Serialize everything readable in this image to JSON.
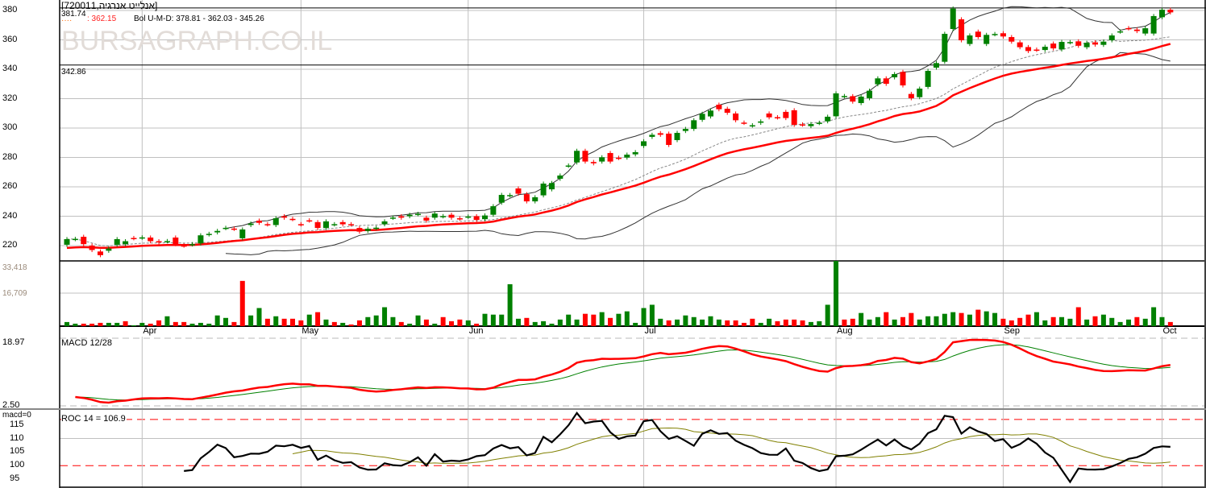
{
  "header": {
    "title": "[אנלייט אנרגיה,720011]",
    "last_price_label": "381.74",
    "ma_value_label": ": 362.15",
    "bollinger_label": "Bol U-M-D: 378.81 - 362.03 - 345.26",
    "low_line_label": "342.86",
    "watermark": "BURSAGRAPH.CO.IL"
  },
  "chart_data": {
    "type": "candlestick",
    "candles": [
      [
        220.6,
        224.4
      ],
      [
        224.4,
        224.6
      ],
      [
        226,
        221
      ],
      [
        220,
        217
      ],
      [
        216,
        213.5
      ],
      [
        216.5,
        218
      ],
      [
        220.6,
        224.4
      ],
      [
        221,
        223
      ],
      [
        225.2,
        225
      ],
      [
        225.4,
        225.6
      ],
      [
        225.5,
        223
      ],
      [
        223,
        222.2
      ],
      [
        222.9,
        223.1
      ],
      [
        225.5,
        221
      ],
      [
        220.1,
        220
      ],
      [
        220.8,
        221
      ],
      [
        221.5,
        227
      ],
      [
        227.6,
        228
      ],
      [
        229,
        230
      ],
      [
        231.9,
        232.1
      ],
      [
        231.6,
        231.4
      ],
      [
        225,
        231
      ],
      [
        234,
        235
      ],
      [
        237,
        235.5
      ],
      [
        234.6,
        234.4
      ],
      [
        234,
        238.6
      ],
      [
        240,
        239
      ],
      [
        238.2,
        238
      ],
      [
        234.6,
        234.4
      ],
      [
        237.2,
        237
      ],
      [
        236,
        232
      ],
      [
        232,
        236.5
      ],
      [
        234.4,
        234.6
      ],
      [
        236,
        234.5
      ],
      [
        234.6,
        234.4
      ],
      [
        232,
        229.5
      ],
      [
        230,
        231.5
      ],
      [
        231.8,
        232.2
      ],
      [
        234.5,
        236.5
      ],
      [
        238.9,
        239.1
      ],
      [
        240,
        239
      ],
      [
        240,
        241
      ],
      [
        241.4,
        241.6
      ],
      [
        239,
        237
      ],
      [
        239,
        241.8
      ],
      [
        239.9,
        240.1
      ],
      [
        241,
        239
      ],
      [
        238.6,
        238.4
      ],
      [
        239.6,
        239.8
      ],
      [
        240,
        237.5
      ],
      [
        238,
        240.5
      ],
      [
        241,
        246.8
      ],
      [
        249.2,
        254.5
      ],
      [
        254.2,
        254.4
      ],
      [
        258.9,
        255.3
      ],
      [
        255,
        250.1
      ],
      [
        250.1,
        252.9
      ],
      [
        254.2,
        262.2
      ],
      [
        258.3,
        262.6
      ],
      [
        265.5,
        267.7
      ],
      [
        274.3,
        274.5
      ],
      [
        276.6,
        284.5
      ],
      [
        284.5,
        277.2
      ],
      [
        276.9,
        276
      ],
      [
        277.2,
        280.1
      ],
      [
        283,
        277.2
      ],
      [
        279.8,
        279.6
      ],
      [
        279.9,
        281.9
      ],
      [
        282.1,
        283.6
      ],
      [
        287.8,
        291
      ],
      [
        294,
        295.4
      ],
      [
        296.5,
        295.4
      ],
      [
        296.2,
        288.5
      ],
      [
        291.8,
        296.7
      ],
      [
        298,
        299.4
      ],
      [
        299.4,
        305.3
      ],
      [
        305.6,
        309.7
      ],
      [
        307.9,
        311.9
      ],
      [
        315.9,
        312.8
      ],
      [
        313.1,
        310.4
      ],
      [
        309.9,
        305.3
      ],
      [
        303.7,
        303.5
      ],
      [
        301.7,
        301.9
      ],
      [
        303.6,
        304.5
      ],
      [
        309.9,
        307.3
      ],
      [
        307.4,
        307.2
      ],
      [
        311,
        306.8
      ],
      [
        312.1,
        302.2
      ],
      [
        302.5,
        302.3
      ],
      [
        301.3,
        302.7
      ],
      [
        303.4,
        303.6
      ],
      [
        304.6,
        307.7
      ],
      [
        308,
        323.6
      ],
      [
        321.6,
        321.8
      ],
      [
        321.7,
        318
      ],
      [
        317,
        321.4
      ],
      [
        320.3,
        325.4
      ],
      [
        329.8,
        333.8
      ],
      [
        333.8,
        330.1
      ],
      [
        334.5,
        336.7
      ],
      [
        338.2,
        329
      ],
      [
        323.2,
        320.3
      ],
      [
        321,
        326.8
      ],
      [
        328,
        338.9
      ],
      [
        341.1,
        344.2
      ],
      [
        345.1,
        364.1
      ],
      [
        367.4,
        381.3
      ],
      [
        374,
        359.7
      ],
      [
        357.2,
        363
      ],
      [
        365.6,
        361.9
      ],
      [
        357.2,
        363.4
      ],
      [
        363.8,
        364
      ],
      [
        364.5,
        362.3
      ],
      [
        361.9,
        358.8
      ],
      [
        358.3,
        355
      ],
      [
        355.1,
        352.4
      ],
      [
        353.4,
        353.2
      ],
      [
        353.1,
        355.3
      ],
      [
        357.5,
        354.2
      ],
      [
        353.5,
        358.6
      ],
      [
        358.3,
        358.5
      ],
      [
        359,
        356
      ],
      [
        355,
        358
      ],
      [
        358.3,
        356.8
      ],
      [
        356.6,
        358.8
      ],
      [
        359.7,
        363
      ],
      [
        365.6,
        365.8
      ],
      [
        368,
        367.8
      ],
      [
        367,
        366
      ],
      [
        364.3,
        367.9
      ],
      [
        364.3,
        376.2
      ],
      [
        375.4,
        380.5
      ],
      [
        380.5,
        378.7
      ]
    ],
    "volume": [
      [
        2100,
        "g"
      ],
      [
        1260,
        "g"
      ],
      [
        1260,
        "r"
      ],
      [
        1260,
        "r"
      ],
      [
        1680,
        "r"
      ],
      [
        1680,
        "g"
      ],
      [
        1680,
        "g"
      ],
      [
        2530,
        "r"
      ],
      [
        420,
        "g"
      ],
      [
        1680,
        "g"
      ],
      [
        1260,
        "r"
      ],
      [
        2950,
        "r"
      ],
      [
        5050,
        "g"
      ],
      [
        2110,
        "r"
      ],
      [
        2110,
        "r"
      ],
      [
        1260,
        "g"
      ],
      [
        1680,
        "g"
      ],
      [
        1260,
        "g"
      ],
      [
        5480,
        "g"
      ],
      [
        4210,
        "g"
      ],
      [
        2110,
        "r"
      ],
      [
        23170,
        "r"
      ],
      [
        5480,
        "g"
      ],
      [
        9270,
        "g"
      ],
      [
        3790,
        "r"
      ],
      [
        5050,
        "g"
      ],
      [
        3790,
        "r"
      ],
      [
        3790,
        "r"
      ],
      [
        2950,
        "r"
      ],
      [
        5900,
        "g"
      ],
      [
        7160,
        "r"
      ],
      [
        3370,
        "g"
      ],
      [
        2110,
        "r"
      ],
      [
        1680,
        "g"
      ],
      [
        840,
        "r"
      ],
      [
        2950,
        "r"
      ],
      [
        4630,
        "g"
      ],
      [
        5480,
        "g"
      ],
      [
        9690,
        "g"
      ],
      [
        4630,
        "g"
      ],
      [
        2110,
        "r"
      ],
      [
        1260,
        "g"
      ],
      [
        5480,
        "g"
      ],
      [
        3370,
        "r"
      ],
      [
        1260,
        "g"
      ],
      [
        4630,
        "r"
      ],
      [
        2530,
        "r"
      ],
      [
        3370,
        "r"
      ],
      [
        2950,
        "g"
      ],
      [
        1260,
        "r"
      ],
      [
        6320,
        "g"
      ],
      [
        5900,
        "g"
      ],
      [
        5900,
        "g"
      ],
      [
        21480,
        "g"
      ],
      [
        3790,
        "g"
      ],
      [
        4210,
        "r"
      ],
      [
        2110,
        "g"
      ],
      [
        2530,
        "g"
      ],
      [
        1260,
        "g"
      ],
      [
        3370,
        "g"
      ],
      [
        5900,
        "g"
      ],
      [
        3370,
        "g"
      ],
      [
        6320,
        "r"
      ],
      [
        5900,
        "r"
      ],
      [
        7160,
        "g"
      ],
      [
        4210,
        "r"
      ],
      [
        6320,
        "g"
      ],
      [
        7580,
        "g"
      ],
      [
        1680,
        "g"
      ],
      [
        9270,
        "g"
      ],
      [
        10950,
        "g"
      ],
      [
        3790,
        "g"
      ],
      [
        2950,
        "r"
      ],
      [
        3370,
        "g"
      ],
      [
        5480,
        "g"
      ],
      [
        4630,
        "g"
      ],
      [
        3370,
        "g"
      ],
      [
        5050,
        "g"
      ],
      [
        3370,
        "g"
      ],
      [
        2950,
        "r"
      ],
      [
        2950,
        "r"
      ],
      [
        1680,
        "r"
      ],
      [
        3790,
        "r"
      ],
      [
        1680,
        "g"
      ],
      [
        3790,
        "g"
      ],
      [
        2530,
        "r"
      ],
      [
        3370,
        "r"
      ],
      [
        3370,
        "r"
      ],
      [
        2950,
        "r"
      ],
      [
        2110,
        "g"
      ],
      [
        2530,
        "g"
      ],
      [
        10950,
        "g"
      ],
      [
        33418,
        "g"
      ],
      [
        3370,
        "r"
      ],
      [
        3790,
        "r"
      ],
      [
        6740,
        "g"
      ],
      [
        3370,
        "g"
      ],
      [
        4630,
        "g"
      ],
      [
        7160,
        "r"
      ],
      [
        3370,
        "g"
      ],
      [
        4630,
        "r"
      ],
      [
        6740,
        "r"
      ],
      [
        3370,
        "g"
      ],
      [
        5050,
        "g"
      ],
      [
        5050,
        "g"
      ],
      [
        6320,
        "g"
      ],
      [
        7160,
        "g"
      ],
      [
        6740,
        "r"
      ],
      [
        5900,
        "g"
      ],
      [
        8420,
        "r"
      ],
      [
        7580,
        "g"
      ],
      [
        6740,
        "g"
      ],
      [
        3790,
        "r"
      ],
      [
        2950,
        "r"
      ],
      [
        4210,
        "r"
      ],
      [
        5900,
        "r"
      ],
      [
        7160,
        "g"
      ],
      [
        2950,
        "g"
      ],
      [
        4630,
        "r"
      ],
      [
        4630,
        "g"
      ],
      [
        3790,
        "g"
      ],
      [
        9690,
        "r"
      ],
      [
        3370,
        "g"
      ],
      [
        5050,
        "r"
      ],
      [
        5900,
        "g"
      ],
      [
        4210,
        "g"
      ],
      [
        2110,
        "g"
      ],
      [
        3370,
        "g"
      ],
      [
        4630,
        "r"
      ],
      [
        3790,
        "g"
      ],
      [
        9690,
        "g"
      ],
      [
        4630,
        "g"
      ],
      [
        2110,
        "r"
      ]
    ],
    "price_axis": {
      "ylim": [
        209.6,
        387.1
      ],
      "ticks": [
        "380",
        "360",
        "340",
        "320",
        "300",
        "280",
        "260",
        "240",
        "220"
      ],
      "grid": true
    },
    "reference_lines": [
      381.74,
      342.86
    ],
    "months": [
      {
        "label": "Apr",
        "bar": 9
      },
      {
        "label": "May",
        "bar": 28
      },
      {
        "label": "Jun",
        "bar": 48
      },
      {
        "label": "Jul",
        "bar": 69
      },
      {
        "label": "Aug",
        "bar": 92
      },
      {
        "label": "Sep",
        "bar": 112
      },
      {
        "label": "Oct",
        "bar": 131
      }
    ],
    "volume_axis": {
      "ticks": [
        "33,418",
        "16,709"
      ],
      "max": 33418
    },
    "bollinger": {
      "period": 20,
      "width": 2
    },
    "moving_average": {
      "period": 20
    },
    "macd": {
      "label": "MACD 12/28",
      "fast": 12,
      "slow": 28,
      "ticks": [
        "18.97",
        "2.50"
      ]
    },
    "roc": {
      "label": "ROC 14 = 106.9",
      "zero_label": "macd=0",
      "period": 14,
      "ticks": [
        "115",
        "110",
        "105",
        "100",
        "95"
      ],
      "levels": [
        100,
        117
      ],
      "ylim": [
        91.8,
        120.4
      ]
    },
    "colors": {
      "up": "#008000",
      "down": "#ff0000",
      "ma": "#ff0000",
      "band": "#333333",
      "mid": "#888888",
      "macd": "#ff0000",
      "signal": "#008000",
      "roc": "#000000",
      "roc_ma": "#808000",
      "grid": "#c0c0c0"
    }
  }
}
